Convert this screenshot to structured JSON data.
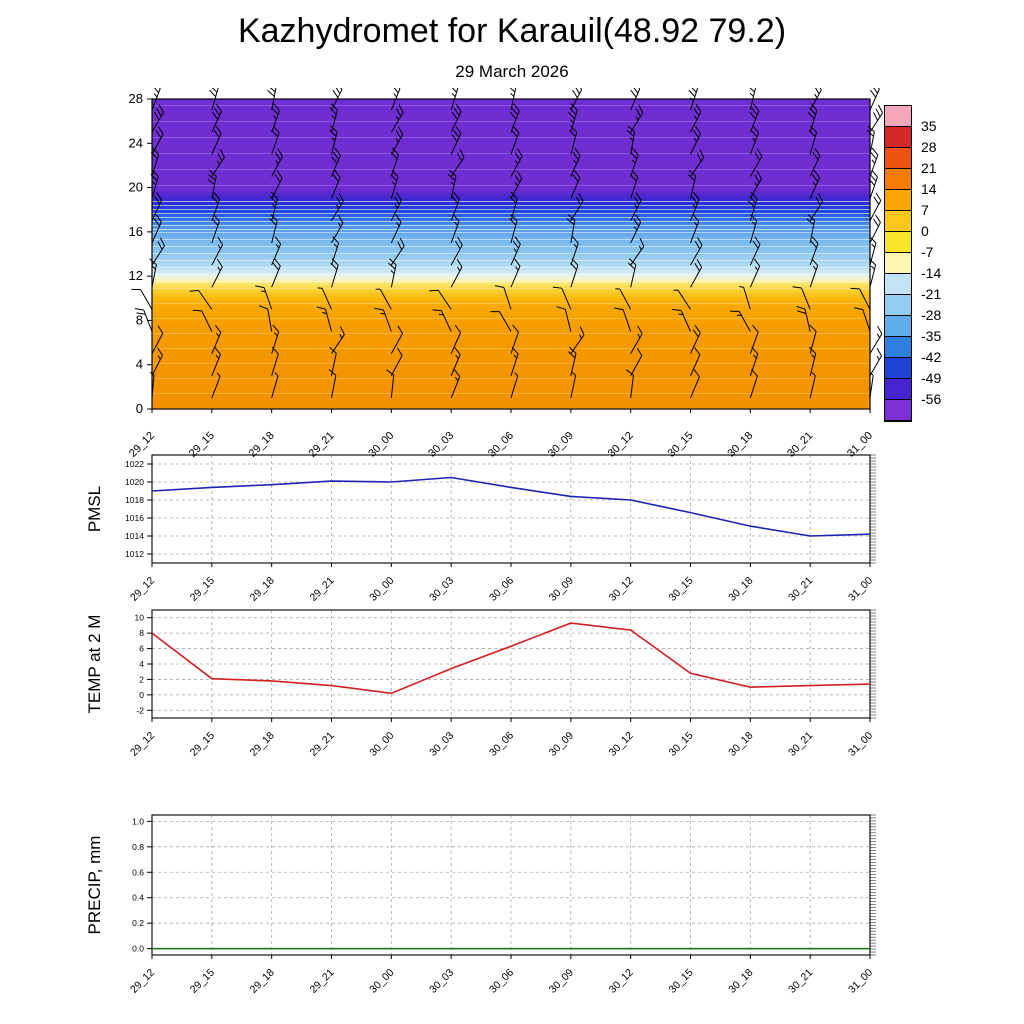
{
  "title": "Kazhydromet for Karauil(48.92 79.2)",
  "subtitle": "29 March 2026",
  "times": [
    "29_12",
    "29_15",
    "29_18",
    "29_21",
    "30_00",
    "30_03",
    "30_06",
    "30_09",
    "30_12",
    "30_15",
    "30_18",
    "30_21",
    "31_00"
  ],
  "chart_data": [
    {
      "type": "heatmap",
      "description": "upper-air temperature shading with wind barbs",
      "ylim": [
        0,
        28
      ],
      "yticks": [
        0,
        4,
        8,
        12,
        16,
        20,
        24,
        28
      ],
      "colorbar_labels": [
        "35",
        "28",
        "21",
        "14",
        "7",
        "0",
        "-7",
        "-14",
        "-21",
        "-28",
        "-35",
        "-42",
        "-49",
        "-56"
      ],
      "colorbar_colors": [
        "#f4a7b9",
        "#d42727",
        "#ee5211",
        "#f57c00",
        "#f9a602",
        "#fbc81b",
        "#fbe52a",
        "#fdf6b0",
        "#c3e3f7",
        "#93ccf1",
        "#5fade9",
        "#2f7fe0",
        "#1f44d4",
        "#4625cf",
        "#7b2fd6"
      ],
      "gradient_stops": [
        [
          0,
          "#6f2ed2"
        ],
        [
          29,
          "#6f2ed2"
        ],
        [
          31.5,
          "#4a28cf"
        ],
        [
          33.5,
          "#2a2ed6"
        ],
        [
          36,
          "#1f45dc"
        ],
        [
          38.5,
          "#2e6ce4"
        ],
        [
          41,
          "#4f93e9"
        ],
        [
          45,
          "#74b6ee"
        ],
        [
          50,
          "#8fc8f0"
        ],
        [
          54,
          "#b5dcf4"
        ],
        [
          56.5,
          "#ddeef7"
        ],
        [
          58,
          "#f8f3cf"
        ],
        [
          59.5,
          "#fbe775"
        ],
        [
          61.5,
          "#fbd335"
        ],
        [
          64,
          "#f9bb10"
        ],
        [
          67,
          "#f7a902"
        ],
        [
          75,
          "#f59b00"
        ],
        [
          100,
          "#f39000"
        ]
      ],
      "wind": {
        "levels": [
          1,
          3,
          5,
          7,
          9,
          11,
          13,
          15,
          17,
          19,
          21,
          23,
          25,
          27
        ],
        "dir": [
          15,
          20,
          25,
          340,
          335,
          20,
          25,
          20,
          25,
          20,
          25,
          20,
          25,
          20
        ],
        "spd": [
          10,
          15,
          15,
          15,
          10,
          20,
          20,
          20,
          25,
          25,
          25,
          25,
          30,
          30
        ]
      }
    },
    {
      "type": "line",
      "name": "PMSL",
      "ylim": [
        1011,
        1023
      ],
      "yticks": [
        1012,
        1014,
        1016,
        1018,
        1020,
        1022
      ],
      "values": [
        1019.0,
        1019.4,
        1019.7,
        1020.1,
        1020.0,
        1020.5,
        1019.4,
        1018.4,
        1018.0,
        1016.6,
        1015.1,
        1014.0,
        1014.2
      ],
      "color": "#2121b2"
    },
    {
      "type": "line",
      "name": "TEMP at 2 M",
      "ylim": [
        -3,
        11
      ],
      "yticks": [
        -2,
        0,
        2,
        4,
        6,
        8,
        10
      ],
      "values": [
        8.0,
        2.1,
        1.8,
        1.2,
        0.2,
        3.4,
        6.3,
        9.3,
        8.4,
        2.8,
        1.0,
        1.2,
        1.4
      ],
      "color": "#d02020"
    },
    {
      "type": "line",
      "name": "PRECIP, mm",
      "ylim": [
        -0.05,
        1.05
      ],
      "yticks": [
        0,
        0.2,
        0.4,
        0.6,
        0.8,
        1
      ],
      "ytick_labels": [
        "0.0",
        "0.2",
        "0.4",
        "0.6",
        "0.8",
        "1.0"
      ],
      "values": [
        0,
        0,
        0,
        0,
        0,
        0,
        0,
        0,
        0,
        0,
        0,
        0,
        0
      ],
      "color": "#1a6b1a"
    }
  ]
}
